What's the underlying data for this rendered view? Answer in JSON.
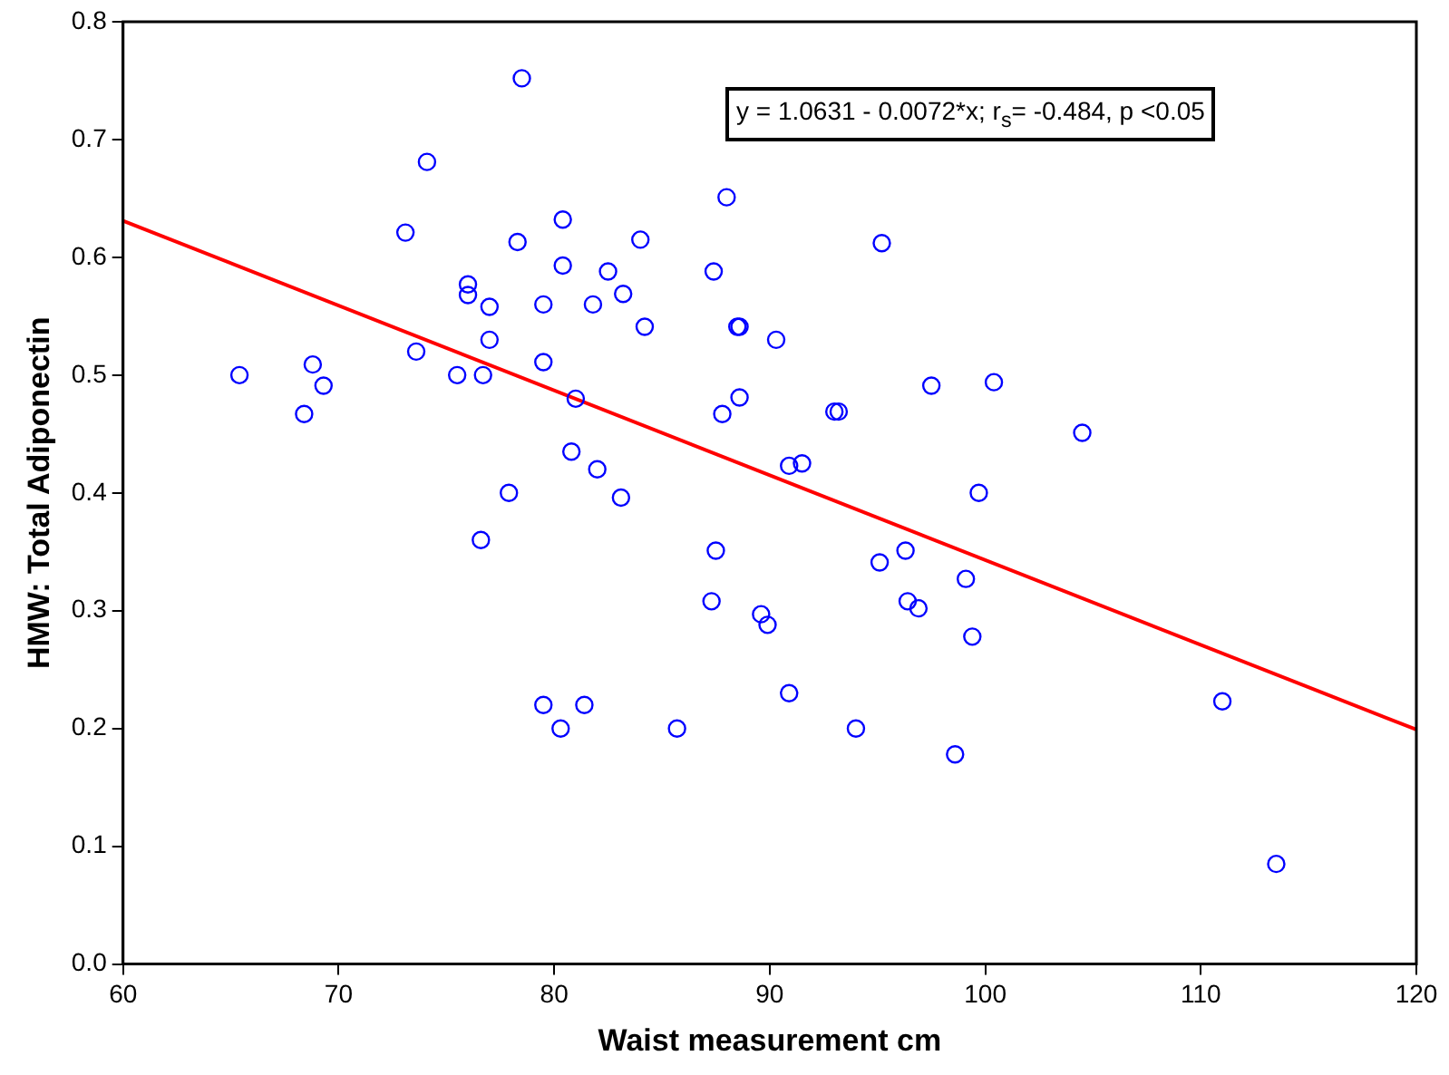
{
  "chart_data": {
    "type": "scatter",
    "xlabel": "Waist measurement cm",
    "ylabel": "HMW: Total Adiponectin",
    "xlim": [
      60,
      120
    ],
    "xticks": [
      60,
      70,
      80,
      90,
      100,
      110,
      120
    ],
    "ylim": [
      0,
      0.8
    ],
    "yticks": [
      {
        "value": 0,
        "label": "0.0"
      },
      0.1,
      0.2,
      0.3,
      0.4,
      0.5,
      0.6,
      0.7,
      0.8
    ],
    "grid": false,
    "legend": false,
    "annotations": [
      "y = 1.0631 - 0.0072*x; r$_{s}$= -0.484, p <0.05"
    ],
    "series": [
      {
        "type": "scatter",
        "marker": "circle",
        "color": "#0000ff",
        "x": [
          65.4,
          68.4,
          68.8,
          69.3,
          73.1,
          73.6,
          74.1,
          75.5,
          76.0,
          76.0,
          76.6,
          76.7,
          77.0,
          77.0,
          77.9,
          78.3,
          78.5,
          79.5,
          79.5,
          79.5,
          80.3,
          80.4,
          80.4,
          80.8,
          81.0,
          81.4,
          81.8,
          82.0,
          82.5,
          83.1,
          83.2,
          84.0,
          84.2,
          85.7,
          87.3,
          87.4,
          87.5,
          87.8,
          88.0,
          88.5,
          88.6,
          88.6,
          89.6,
          89.9,
          90.3,
          90.9,
          90.9,
          91.5,
          93.0,
          93.2,
          94.0,
          95.1,
          95.2,
          96.3,
          96.4,
          96.9,
          97.5,
          98.6,
          99.1,
          99.4,
          99.7,
          100.4,
          104.5,
          111.0,
          113.5
        ],
        "values": [
          0.5,
          0.467,
          0.509,
          0.491,
          0.621,
          0.52,
          0.681,
          0.5,
          0.577,
          0.568,
          0.36,
          0.5,
          0.558,
          0.53,
          0.4,
          0.613,
          0.752,
          0.22,
          0.56,
          0.511,
          0.2,
          0.632,
          0.593,
          0.435,
          0.48,
          0.22,
          0.56,
          0.42,
          0.588,
          0.396,
          0.569,
          0.615,
          0.541,
          0.2,
          0.308,
          0.588,
          0.351,
          0.467,
          0.651,
          0.541,
          0.541,
          0.481,
          0.297,
          0.288,
          0.53,
          0.23,
          0.423,
          0.425,
          0.469,
          0.469,
          0.2,
          0.341,
          0.612,
          0.351,
          0.308,
          0.302,
          0.491,
          0.178,
          0.327,
          0.278,
          0.4,
          0.494,
          0.451,
          0.223,
          0.085
        ]
      },
      {
        "type": "line",
        "marker": "none",
        "color": "#ff0000",
        "x": [
          60,
          120
        ],
        "values": [
          0.631,
          0.199
        ]
      }
    ]
  }
}
